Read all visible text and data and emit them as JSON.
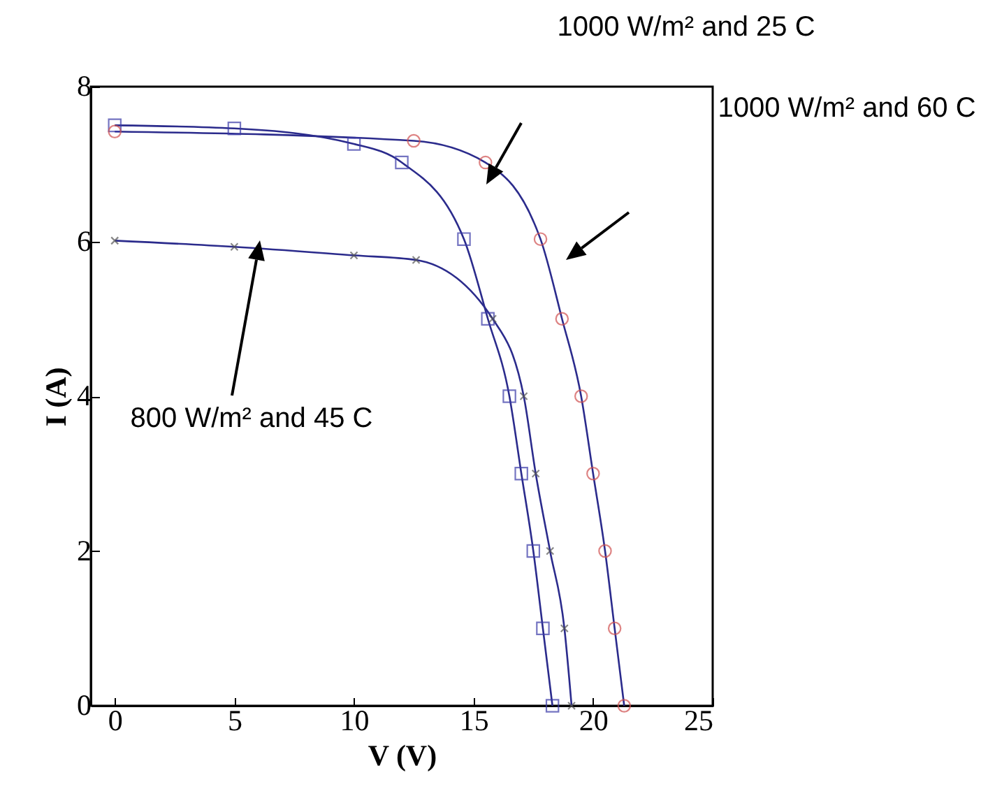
{
  "chart_data": {
    "type": "scatter",
    "xlabel": "V (V)",
    "ylabel": "I (A)",
    "xlim": [
      -1,
      25
    ],
    "ylim": [
      0,
      8
    ],
    "xticks": [
      0,
      5,
      10,
      15,
      20,
      25
    ],
    "yticks": [
      {
        "value": 0,
        "label": "0"
      },
      {
        "value": 2,
        "label": "2"
      },
      {
        "value": 4,
        "label": "4"
      },
      {
        "value": 6,
        "label": "6"
      },
      {
        "value": 8,
        "label": "8"
      }
    ],
    "grid": false,
    "annotations": [
      "1000 W/m² and 25 C",
      "1000 W/m² and 60 C",
      "800 W/m² and 45 C"
    ],
    "series": [
      {
        "type": "line",
        "color": "#2b2b8c",
        "marker": "none",
        "x": [
          0,
          5,
          10,
          12,
          14.6,
          15.6,
          16.5,
          17,
          17.5,
          17.9,
          18.3
        ],
        "values": [
          7.5,
          7.46,
          7.26,
          7.02,
          6.03,
          5.0,
          4.0,
          3.0,
          2.0,
          1.0,
          0
        ]
      },
      {
        "type": "line",
        "color": "#2b2b8c",
        "marker": "none",
        "x": [
          0,
          12.5,
          15.5,
          17.8,
          18.7,
          19.5,
          20,
          20.5,
          20.9,
          21.3
        ],
        "values": [
          7.42,
          7.3,
          7.02,
          6.03,
          5.0,
          4.0,
          3.0,
          2.0,
          1.0,
          0
        ]
      },
      {
        "type": "line",
        "color": "#2b2b8c",
        "marker": "none",
        "x": [
          0,
          5,
          10,
          12.6,
          15.8,
          17.1,
          17.6,
          18.2,
          18.8,
          19.1
        ],
        "values": [
          6.01,
          5.93,
          5.82,
          5.76,
          5.0,
          4.0,
          3.0,
          2.0,
          1.0,
          0
        ]
      },
      {
        "color": "#3a3aa8",
        "marker": "square",
        "x": [
          0,
          5,
          10,
          12,
          14.6,
          15.6,
          16.5,
          17,
          17.5,
          17.9,
          18.3
        ],
        "values": [
          7.5,
          7.46,
          7.26,
          7.02,
          6.03,
          5.0,
          4.0,
          3.0,
          2.0,
          1.0,
          0
        ]
      },
      {
        "color": "#d05050",
        "marker": "circle",
        "x": [
          0,
          12.5,
          15.5,
          17.8,
          18.7,
          19.5,
          20,
          20.5,
          20.9,
          21.3
        ],
        "values": [
          7.42,
          7.3,
          7.02,
          6.03,
          5.0,
          4.0,
          3.0,
          2.0,
          1.0,
          0
        ]
      },
      {
        "color": "#555555",
        "marker": "cross",
        "x": [
          0,
          5,
          10,
          12.6,
          15.8,
          17.1,
          17.6,
          18.2,
          18.8,
          19.1
        ],
        "values": [
          6.01,
          5.93,
          5.82,
          5.76,
          5.0,
          4.0,
          3.0,
          2.0,
          1.0,
          0
        ]
      }
    ]
  }
}
